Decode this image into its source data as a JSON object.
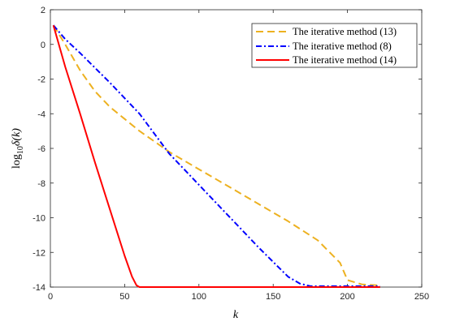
{
  "chart_data": {
    "type": "line",
    "xlabel": "k",
    "ylabel_main": "log",
    "ylabel_sub": "10",
    "ylabel_tail": "δ(k)",
    "xlim": [
      0,
      250
    ],
    "ylim": [
      -14,
      2
    ],
    "xticks": [
      0,
      50,
      100,
      150,
      200,
      250
    ],
    "yticks": [
      2,
      0,
      -2,
      -4,
      -6,
      -8,
      -10,
      -12,
      -14
    ],
    "grid": false,
    "legend_position": "top-right",
    "series": [
      {
        "name": "The iterative method (13)",
        "color": "#EDB120",
        "style": "dashed",
        "x": [
          2,
          10,
          20,
          30,
          40,
          50,
          60,
          70,
          80,
          100,
          120,
          140,
          160,
          180,
          195,
          200,
          210,
          222
        ],
        "y": [
          1.1,
          0.0,
          -1.5,
          -2.7,
          -3.6,
          -4.3,
          -5.0,
          -5.6,
          -6.2,
          -7.2,
          -8.2,
          -9.2,
          -10.2,
          -11.3,
          -12.6,
          -13.6,
          -13.85,
          -13.9
        ]
      },
      {
        "name": "The iterative method (8)",
        "color": "#0000FF",
        "style": "dash-dot",
        "x": [
          2,
          10,
          20,
          40,
          60,
          80,
          100,
          120,
          140,
          160,
          168,
          175,
          190,
          222
        ],
        "y": [
          1.1,
          0.3,
          -0.5,
          -2.2,
          -4.0,
          -6.3,
          -8.1,
          -9.9,
          -11.7,
          -13.4,
          -13.8,
          -13.95,
          -13.95,
          -13.95
        ]
      },
      {
        "name": "The iterative method (14)",
        "color": "#FF0000",
        "style": "solid",
        "x": [
          2,
          10,
          20,
          30,
          40,
          50,
          55,
          58,
          60,
          62,
          80,
          120,
          160,
          222
        ],
        "y": [
          1.1,
          -1.3,
          -4.0,
          -6.8,
          -9.5,
          -12.2,
          -13.4,
          -13.9,
          -14.0,
          -14.0,
          -14.0,
          -14.0,
          -14.0,
          -14.0
        ]
      }
    ]
  }
}
